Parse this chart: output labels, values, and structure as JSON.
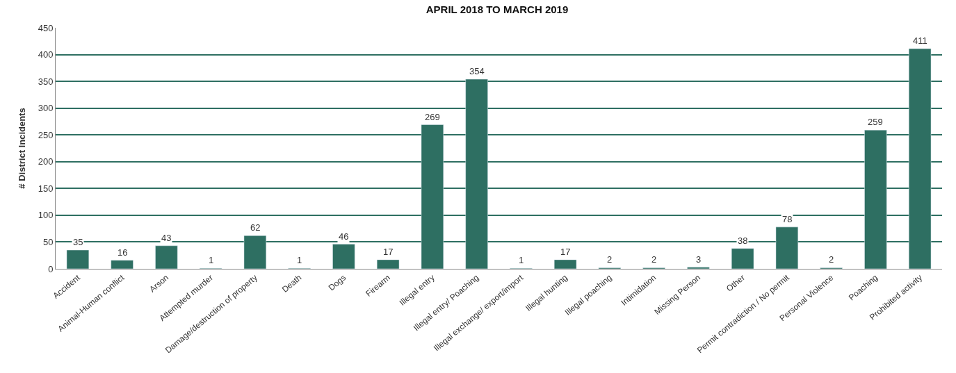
{
  "chart_data": {
    "type": "bar",
    "title": "APRIL 2018 TO MARCH 2019",
    "ylabel": "# District Incidents",
    "categories": [
      "Accident",
      "Animal-Human conflict",
      "Arson",
      "Attempted murder",
      "Damage/destruction of property",
      "Death",
      "Dogs",
      "Firearm",
      "Illegal entry",
      "Illegal entry/ Poaching",
      "Illegal exchange/ export/import",
      "Illegal hunting",
      "Illegal poaching",
      "Intimidation",
      "Missing Person",
      "Other",
      "Permit contradiction / No permit",
      "Personal Violence",
      "Poaching",
      "Prohibited activity"
    ],
    "values": [
      35,
      16,
      43,
      1,
      62,
      1,
      46,
      17,
      269,
      354,
      1,
      17,
      2,
      2,
      3,
      38,
      78,
      2,
      259,
      411
    ],
    "color": "#2e6f62",
    "data_labels": true,
    "ylim": [
      0,
      450
    ],
    "yticks": [
      0,
      50,
      100,
      150,
      200,
      250,
      300,
      350,
      400,
      450
    ],
    "grid": "y",
    "legend": false
  }
}
